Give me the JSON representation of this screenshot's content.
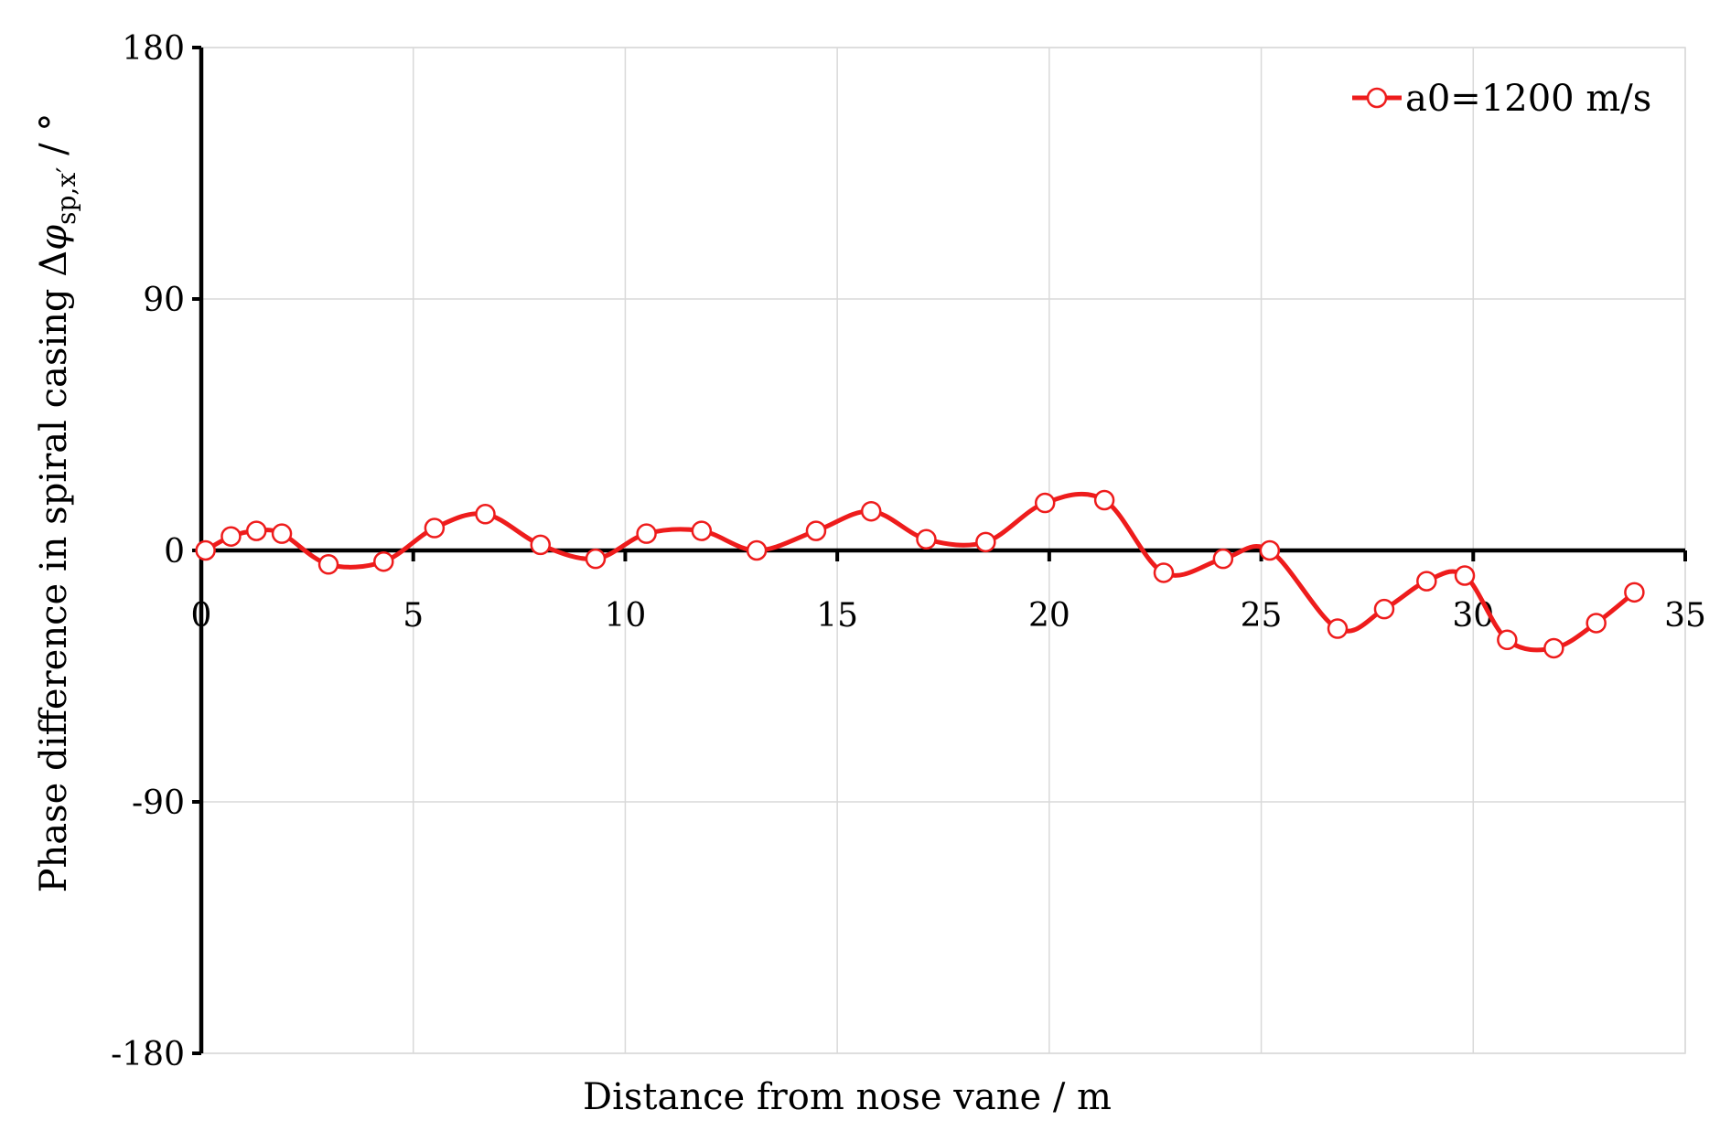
{
  "chart_data": {
    "type": "line",
    "title": "",
    "xlabel": "Distance from nose vane / m",
    "ylabel": {
      "prefix": "Phase difference in spiral casing Δ",
      "symbol": "φ",
      "subscript": "sp,x′",
      "suffix": " / °"
    },
    "xlim": [
      0,
      35
    ],
    "ylim": [
      -180,
      180
    ],
    "xticks": [
      0,
      5,
      10,
      15,
      20,
      25,
      30,
      35
    ],
    "yticks": [
      -180,
      -90,
      0,
      90,
      180
    ],
    "xtick_labels": [
      "0",
      "5",
      "10",
      "15",
      "20",
      "25",
      "30",
      "35"
    ],
    "ytick_labels": [
      "-180",
      "-90",
      "0",
      "90",
      "180"
    ],
    "grid": true,
    "legend_position": "top-right",
    "series": [
      {
        "name": "a0=1200 m/s",
        "color": "#ee1c1c",
        "marker": "open-circle",
        "smooth": true,
        "x": [
          0.1,
          0.7,
          1.3,
          1.9,
          3.0,
          4.3,
          5.5,
          6.7,
          8.0,
          9.3,
          10.5,
          11.8,
          13.1,
          14.5,
          15.8,
          17.1,
          18.5,
          19.9,
          21.3,
          22.7,
          24.1,
          25.2,
          26.8,
          27.9,
          28.9,
          29.8,
          30.8,
          31.9,
          32.9,
          33.8
        ],
        "y": [
          0,
          5,
          7,
          6,
          -5,
          -4,
          8,
          13,
          2,
          -3,
          6,
          7,
          0,
          7,
          14,
          4,
          3,
          17,
          18,
          -8,
          -3,
          0,
          -28,
          -21,
          -11,
          -9,
          -32,
          -35,
          -26,
          -15
        ]
      }
    ]
  }
}
